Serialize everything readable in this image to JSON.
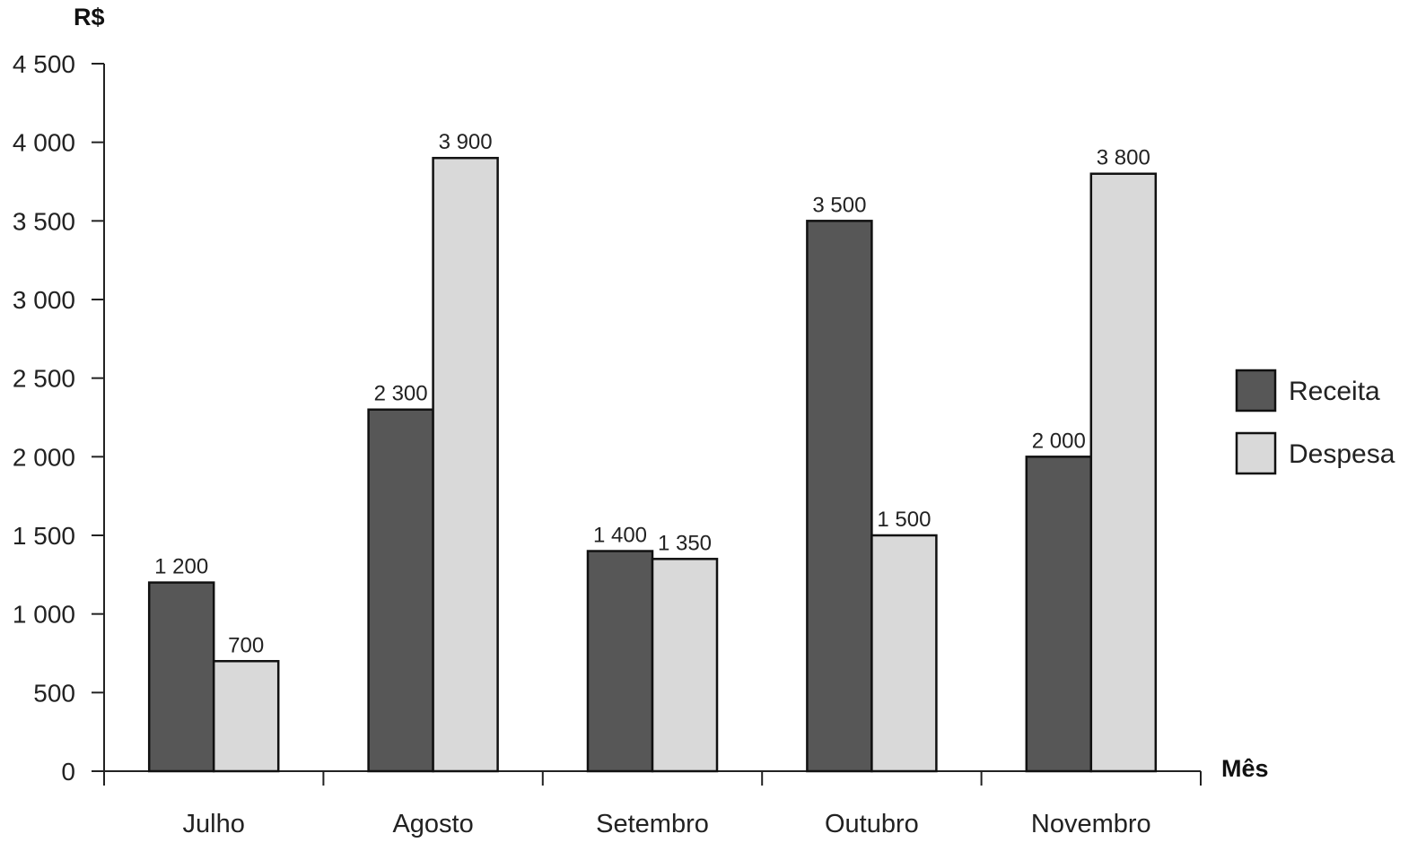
{
  "chart_data": {
    "type": "bar",
    "categories": [
      "Julho",
      "Agosto",
      "Setembro",
      "Outubro",
      "Novembro"
    ],
    "series": [
      {
        "name": "Receita",
        "values": [
          1200,
          2300,
          1400,
          3500,
          2000
        ],
        "color": "#575757",
        "labels": [
          "1 200",
          "2 300",
          "1 400",
          "3 500",
          "2 000"
        ]
      },
      {
        "name": "Despesa",
        "values": [
          700,
          3900,
          1350,
          1500,
          3800
        ],
        "color": "#d9d9d9",
        "labels": [
          "700",
          "3 900",
          "1 350",
          "1 500",
          "3 800"
        ]
      }
    ],
    "title": "",
    "xlabel": "Mês",
    "ylabel": "R$",
    "ylim": [
      0,
      4500
    ],
    "yticks": [
      0,
      500,
      1000,
      1500,
      2000,
      2500,
      3000,
      3500,
      4000,
      4500
    ],
    "ytick_labels": [
      "0",
      "500",
      "1 000",
      "1 500",
      "2 000",
      "2 500",
      "3 000",
      "3 500",
      "4 000",
      "4 500"
    ],
    "grid": false,
    "legend_position": "right"
  }
}
